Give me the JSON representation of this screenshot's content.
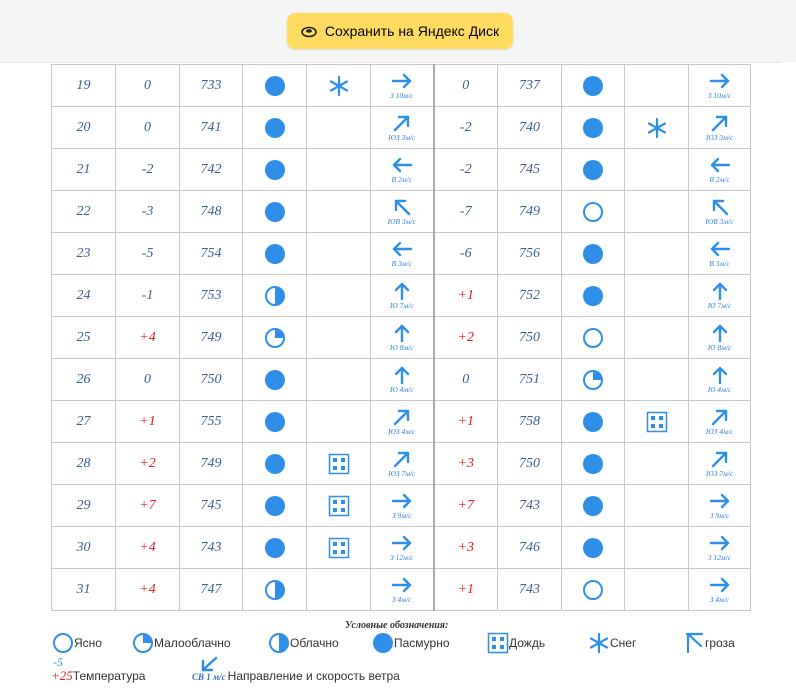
{
  "toolbar": {
    "save_label": "Сохранить на Яндекс Диск"
  },
  "rows": [
    {
      "day": "19",
      "t1": "0",
      "p1": "733",
      "c1": "overcast",
      "ph1": "snow",
      "w1": {
        "dir": "E",
        "label": "З 10м/с"
      },
      "t2": "0",
      "p2": "737",
      "c2": "overcast",
      "ph2": "",
      "w2": {
        "dir": "E",
        "label": "З 10м/с"
      }
    },
    {
      "day": "20",
      "t1": "0",
      "p1": "741",
      "c1": "overcast",
      "ph1": "",
      "w1": {
        "dir": "NE",
        "label": "ЮЗ 3м/с"
      },
      "t2": "-2",
      "p2": "740",
      "c2": "overcast",
      "ph2": "snow",
      "w2": {
        "dir": "NE",
        "label": "ЮЗ 3м/с"
      }
    },
    {
      "day": "21",
      "t1": "-2",
      "p1": "742",
      "c1": "overcast",
      "ph1": "",
      "w1": {
        "dir": "W",
        "label": "В 2м/с"
      },
      "t2": "-2",
      "p2": "745",
      "c2": "overcast",
      "ph2": "",
      "w2": {
        "dir": "W",
        "label": "В 2м/с"
      }
    },
    {
      "day": "22",
      "t1": "-3",
      "p1": "748",
      "c1": "overcast",
      "ph1": "",
      "w1": {
        "dir": "NW",
        "label": "ЮВ 3м/с"
      },
      "t2": "-7",
      "p2": "749",
      "c2": "clear",
      "ph2": "",
      "w2": {
        "dir": "NW",
        "label": "ЮВ 3м/с"
      }
    },
    {
      "day": "23",
      "t1": "-5",
      "p1": "754",
      "c1": "overcast",
      "ph1": "",
      "w1": {
        "dir": "W",
        "label": "В 3м/с"
      },
      "t2": "-6",
      "p2": "756",
      "c2": "overcast",
      "ph2": "",
      "w2": {
        "dir": "W",
        "label": "В 3м/с"
      }
    },
    {
      "day": "24",
      "t1": "-1",
      "p1": "753",
      "c1": "cloudy",
      "ph1": "",
      "w1": {
        "dir": "N",
        "label": "Ю 7м/с"
      },
      "t2": "+1",
      "p2": "752",
      "c2": "overcast",
      "ph2": "",
      "w2": {
        "dir": "N",
        "label": "Ю 7м/с"
      }
    },
    {
      "day": "25",
      "t1": "+4",
      "p1": "749",
      "c1": "partly",
      "ph1": "",
      "w1": {
        "dir": "N",
        "label": "Ю 8м/с"
      },
      "t2": "+2",
      "p2": "750",
      "c2": "clear",
      "ph2": "",
      "w2": {
        "dir": "N",
        "label": "Ю 8м/с"
      }
    },
    {
      "day": "26",
      "t1": "0",
      "p1": "750",
      "c1": "overcast",
      "ph1": "",
      "w1": {
        "dir": "N",
        "label": "Ю 4м/с"
      },
      "t2": "0",
      "p2": "751",
      "c2": "partly",
      "ph2": "",
      "w2": {
        "dir": "N",
        "label": "Ю 4м/с"
      }
    },
    {
      "day": "27",
      "t1": "+1",
      "p1": "755",
      "c1": "overcast",
      "ph1": "",
      "w1": {
        "dir": "NE",
        "label": "ЮЗ 4м/с"
      },
      "t2": "+1",
      "p2": "758",
      "c2": "overcast",
      "ph2": "rain",
      "w2": {
        "dir": "NE",
        "label": "ЮЗ 4м/с"
      }
    },
    {
      "day": "28",
      "t1": "+2",
      "p1": "749",
      "c1": "overcast",
      "ph1": "rain",
      "w1": {
        "dir": "NE",
        "label": "ЮЗ 7м/с"
      },
      "t2": "+3",
      "p2": "750",
      "c2": "overcast",
      "ph2": "",
      "w2": {
        "dir": "NE",
        "label": "ЮЗ 7м/с"
      }
    },
    {
      "day": "29",
      "t1": "+7",
      "p1": "745",
      "c1": "overcast",
      "ph1": "rain",
      "w1": {
        "dir": "E",
        "label": "З 9м/с"
      },
      "t2": "+7",
      "p2": "743",
      "c2": "overcast",
      "ph2": "",
      "w2": {
        "dir": "E",
        "label": "З 9м/с"
      }
    },
    {
      "day": "30",
      "t1": "+4",
      "p1": "743",
      "c1": "overcast",
      "ph1": "rain",
      "w1": {
        "dir": "E",
        "label": "З 12м/с"
      },
      "t2": "+3",
      "p2": "746",
      "c2": "overcast",
      "ph2": "",
      "w2": {
        "dir": "E",
        "label": "З 12м/с"
      }
    },
    {
      "day": "31",
      "t1": "+4",
      "p1": "747",
      "c1": "cloudy",
      "ph1": "",
      "w1": {
        "dir": "E",
        "label": "З 4м/с"
      },
      "t2": "+1",
      "p2": "743",
      "c2": "clear",
      "ph2": "",
      "w2": {
        "dir": "E",
        "label": "З 4м/с"
      }
    }
  ],
  "legend": {
    "title": "Условные обозначения:",
    "clear": "Ясно",
    "partly": "Малооблачно",
    "cloudy": "Облачно",
    "overcast": "Пасмурно",
    "rain": "Дождь",
    "snow": "Снег",
    "storm": "гроза",
    "temp_minus": "-5",
    "temp_plus": "+25",
    "temp_label": "Температура",
    "wind_sample": "СВ 1 м/с",
    "wind_label": "Направление и скорость ветра"
  },
  "colors": {
    "accent": "#2f8fe8",
    "warm": "#e21b1b",
    "text": "#3a5e96",
    "button": "#ffdc60"
  }
}
